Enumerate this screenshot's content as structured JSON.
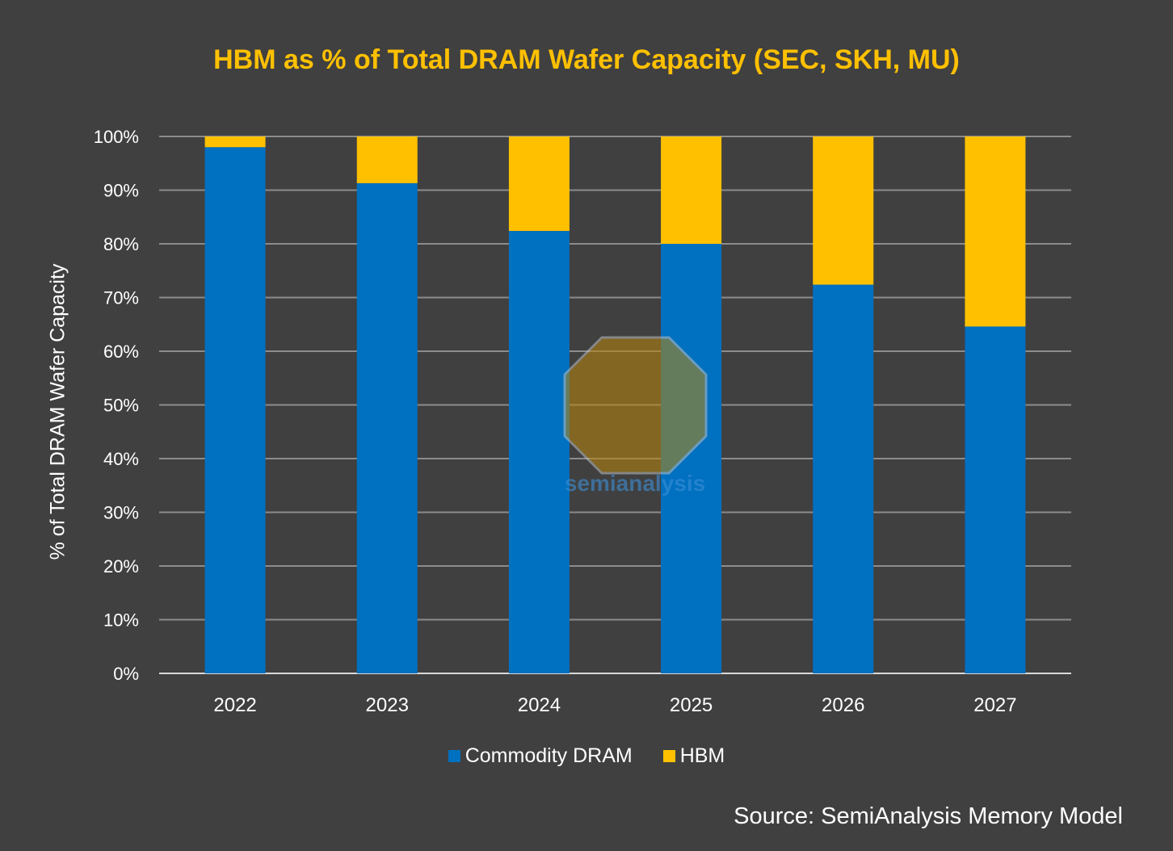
{
  "chart_data": {
    "type": "bar",
    "stacked": true,
    "title": "HBM as % of Total DRAM Wafer Capacity (SEC, SKH, MU)",
    "xlabel": "",
    "ylabel": "% of Total DRAM Wafer Capacity",
    "ylim": [
      0,
      100
    ],
    "yticks": [
      "0%",
      "10%",
      "20%",
      "30%",
      "40%",
      "50%",
      "60%",
      "70%",
      "80%",
      "90%",
      "100%"
    ],
    "categories": [
      "2022",
      "2023",
      "2024",
      "2025",
      "2026",
      "2027"
    ],
    "series": [
      {
        "name": "Commodity DRAM",
        "color": "#0070C0",
        "values": [
          98.0,
          91.3,
          82.4,
          80.0,
          72.4,
          64.6
        ]
      },
      {
        "name": "HBM",
        "color": "#FFC000",
        "values": [
          2.0,
          8.7,
          17.6,
          20.0,
          27.6,
          35.4
        ]
      }
    ],
    "grid": true,
    "legend_position": "bottom"
  },
  "source": "Source: SemiAnalysis Memory Model",
  "watermark": "semianalysis"
}
